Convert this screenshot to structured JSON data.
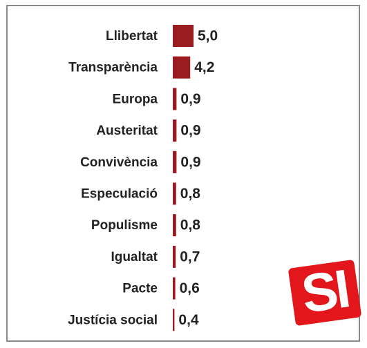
{
  "chart_data": {
    "type": "bar",
    "orientation": "horizontal",
    "categories": [
      "Llibertat",
      "Transparència",
      "Europa",
      "Austeritat",
      "Convivència",
      "Especulació",
      "Populisme",
      "Igualtat",
      "Pacte",
      "Justícia social"
    ],
    "values": [
      5.0,
      4.2,
      0.9,
      0.9,
      0.9,
      0.8,
      0.8,
      0.7,
      0.6,
      0.4
    ],
    "value_labels": [
      "5,0",
      "4,2",
      "0,9",
      "0,9",
      "0,9",
      "0,8",
      "0,8",
      "0,7",
      "0,6",
      "0,4"
    ],
    "color": "#9b1c20"
  },
  "logo": "SI"
}
